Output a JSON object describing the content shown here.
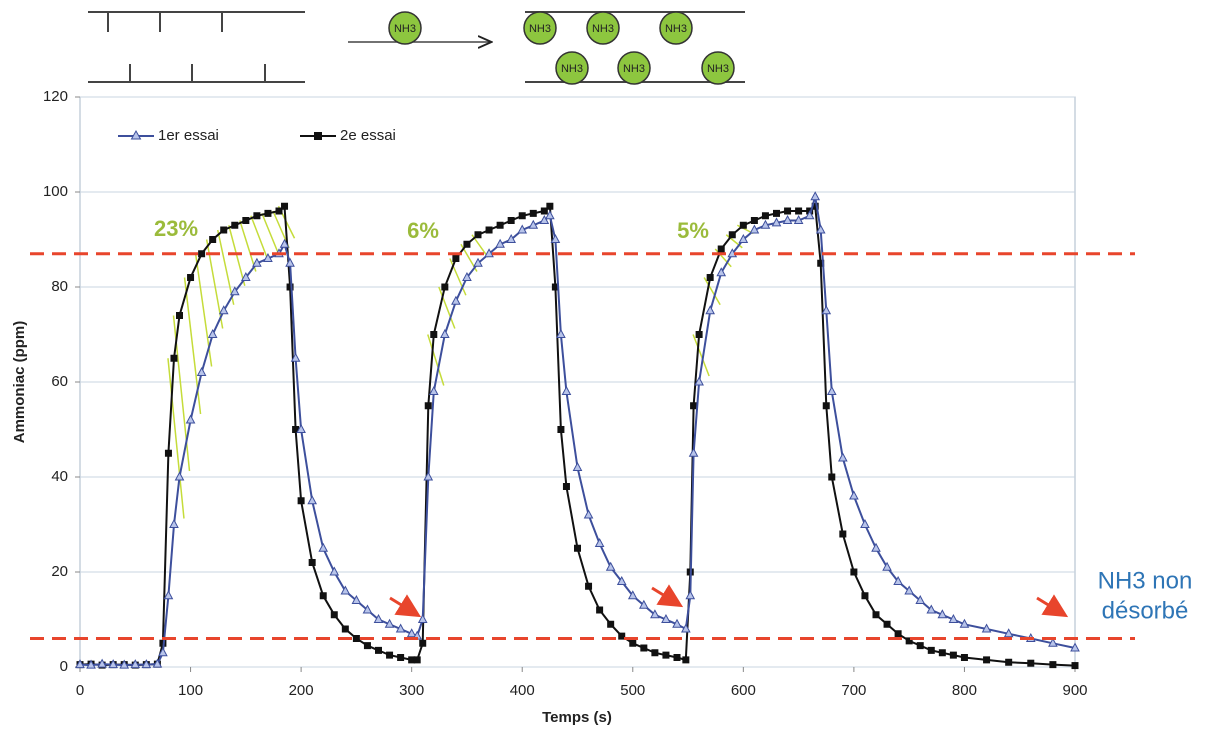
{
  "chart_data": {
    "type": "line",
    "xlabel": "Temps (s)",
    "ylabel": "Ammoniac (ppm)",
    "xlim": [
      0,
      900
    ],
    "xticks": [
      0,
      100,
      200,
      300,
      400,
      500,
      600,
      700,
      800,
      900
    ],
    "ylim": [
      0,
      120
    ],
    "yticks": [
      0,
      20,
      40,
      60,
      80,
      100,
      120
    ],
    "grid": true,
    "legend": "upper left",
    "x": [
      0,
      10,
      20,
      30,
      40,
      50,
      60,
      70,
      75,
      80,
      85,
      90,
      100,
      110,
      120,
      130,
      140,
      150,
      160,
      170,
      180,
      185,
      190,
      195,
      200,
      210,
      220,
      230,
      240,
      250,
      260,
      270,
      280,
      290,
      300,
      305,
      310,
      315,
      320,
      330,
      340,
      350,
      360,
      370,
      380,
      390,
      400,
      410,
      420,
      425,
      430,
      435,
      440,
      450,
      460,
      470,
      480,
      490,
      500,
      510,
      520,
      530,
      540,
      548,
      552,
      555,
      560,
      570,
      580,
      590,
      600,
      610,
      620,
      630,
      640,
      650,
      660,
      665,
      670,
      675,
      680,
      690,
      700,
      710,
      720,
      730,
      740,
      750,
      760,
      770,
      780,
      790,
      800,
      820,
      840,
      860,
      880,
      900
    ],
    "series": [
      {
        "name": "1er essai",
        "color": "#3d4f9c",
        "marker": "triangle",
        "values": [
          0.5,
          0.4,
          0.6,
          0.5,
          0.4,
          0.5,
          0.5,
          0.6,
          3,
          15,
          30,
          40,
          52,
          62,
          70,
          75,
          79,
          82,
          85,
          86,
          87,
          89,
          85,
          65,
          50,
          35,
          25,
          20,
          16,
          14,
          12,
          10,
          9,
          8,
          7,
          6.5,
          10,
          40,
          58,
          70,
          77,
          82,
          85,
          87,
          89,
          90,
          92,
          93,
          94,
          95,
          90,
          70,
          58,
          42,
          32,
          26,
          21,
          18,
          15,
          13,
          11,
          10,
          9,
          8,
          15,
          45,
          60,
          75,
          83,
          87,
          90,
          92,
          93,
          93.5,
          94,
          94,
          95,
          99,
          92,
          75,
          58,
          44,
          36,
          30,
          25,
          21,
          18,
          16,
          14,
          12,
          11,
          10,
          9,
          8,
          7,
          6,
          5,
          4
        ]
      },
      {
        "name": "2e essai",
        "color": "#111111",
        "marker": "square",
        "values": [
          0.5,
          0.6,
          0.4,
          0.5,
          0.5,
          0.4,
          0.5,
          0.6,
          5,
          45,
          65,
          74,
          82,
          87,
          90,
          92,
          93,
          94,
          95,
          95.5,
          96,
          97,
          80,
          50,
          35,
          22,
          15,
          11,
          8,
          6,
          4.5,
          3.5,
          2.5,
          2,
          1.5,
          1.5,
          5,
          55,
          70,
          80,
          86,
          89,
          91,
          92,
          93,
          94,
          95,
          95.5,
          96,
          97,
          80,
          50,
          38,
          25,
          17,
          12,
          9,
          6.5,
          5,
          4,
          3,
          2.5,
          2,
          1.5,
          20,
          55,
          70,
          82,
          88,
          91,
          93,
          94,
          95,
          95.5,
          96,
          96,
          96,
          97,
          85,
          55,
          40,
          28,
          20,
          15,
          11,
          9,
          7,
          5.5,
          4.5,
          3.5,
          3,
          2.5,
          2,
          1.5,
          1,
          0.8,
          0.5,
          0.3
        ]
      }
    ],
    "hlines": [
      87,
      6
    ],
    "hline_color": "#e8452c",
    "annotations": [
      "23%",
      "6%",
      "5%"
    ],
    "annotation_color": "#9bbb3b",
    "note": [
      "NH3 non",
      "désorbé"
    ],
    "note_color": "#2e75b6"
  },
  "diagram": {
    "molecules": [
      "NH3",
      "NH3",
      "NH3",
      "NH3",
      "NH3",
      "NH3",
      "NH3"
    ]
  }
}
